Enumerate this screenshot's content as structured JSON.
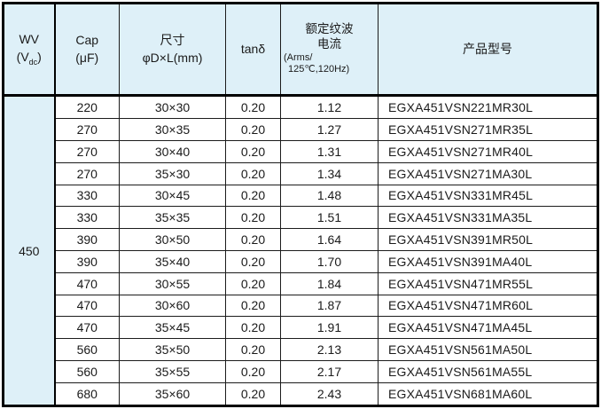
{
  "page": {
    "background": "#ffffff",
    "accent_blue": "#def0f8",
    "border_color": "#000000",
    "text_color": "#1a1a1a"
  },
  "table": {
    "headers": {
      "wv": {
        "line1": "WV",
        "paren_open": "(V",
        "subscript": "dc",
        "paren_close": ")"
      },
      "cap": {
        "line1": "Cap",
        "line2": "(μF)"
      },
      "size": {
        "line1": "尺寸",
        "line2": "φD×L(mm)"
      },
      "tan_delta": {
        "line1": "tanδ"
      },
      "ripple": {
        "line1": "额定纹波",
        "line2": "电流",
        "line3": "(Arms/",
        "line4": "125℃,120Hz)"
      },
      "model": {
        "line1": "产品型号"
      }
    },
    "wv_value": "450",
    "rows": [
      {
        "cap": "220",
        "size": "30×30",
        "tan_delta": "0.20",
        "ripple": "1.12",
        "model": "EGXA451VSN221MR30L"
      },
      {
        "cap": "270",
        "size": "30×35",
        "tan_delta": "0.20",
        "ripple": "1.27",
        "model": "EGXA451VSN271MR35L"
      },
      {
        "cap": "270",
        "size": "30×40",
        "tan_delta": "0.20",
        "ripple": "1.31",
        "model": "EGXA451VSN271MR40L"
      },
      {
        "cap": "270",
        "size": "35×30",
        "tan_delta": "0.20",
        "ripple": "1.34",
        "model": "EGXA451VSN271MA30L"
      },
      {
        "cap": "330",
        "size": "30×45",
        "tan_delta": "0.20",
        "ripple": "1.48",
        "model": "EGXA451VSN331MR45L"
      },
      {
        "cap": "330",
        "size": "35×35",
        "tan_delta": "0.20",
        "ripple": "1.51",
        "model": "EGXA451VSN331MA35L"
      },
      {
        "cap": "390",
        "size": "30×50",
        "tan_delta": "0.20",
        "ripple": "1.64",
        "model": "EGXA451VSN391MR50L"
      },
      {
        "cap": "390",
        "size": "35×40",
        "tan_delta": "0.20",
        "ripple": "1.70",
        "model": "EGXA451VSN391MA40L"
      },
      {
        "cap": "470",
        "size": "30×55",
        "tan_delta": "0.20",
        "ripple": "1.84",
        "model": "EGXA451VSN471MR55L"
      },
      {
        "cap": "470",
        "size": "30×60",
        "tan_delta": "0.20",
        "ripple": "1.87",
        "model": "EGXA451VSN471MR60L"
      },
      {
        "cap": "470",
        "size": "35×45",
        "tan_delta": "0.20",
        "ripple": "1.91",
        "model": "EGXA451VSN471MA45L"
      },
      {
        "cap": "560",
        "size": "35×50",
        "tan_delta": "0.20",
        "ripple": "2.13",
        "model": "EGXA451VSN561MA50L"
      },
      {
        "cap": "560",
        "size": "35×55",
        "tan_delta": "0.20",
        "ripple": "2.17",
        "model": "EGXA451VSN561MA55L"
      },
      {
        "cap": "680",
        "size": "35×60",
        "tan_delta": "0.20",
        "ripple": "2.43",
        "model": "EGXA451VSN681MA60L"
      }
    ]
  }
}
